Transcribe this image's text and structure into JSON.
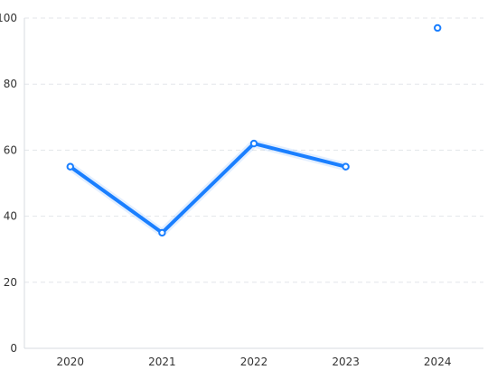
{
  "chart_data": {
    "type": "line",
    "categories": [
      "2020",
      "2021",
      "2022",
      "2023",
      "2024"
    ],
    "series": [
      {
        "values": [
          55,
          35,
          62,
          55,
          97
        ]
      }
    ],
    "segments_connected": [
      true,
      true,
      true,
      false
    ],
    "y_ticks": [
      0,
      20,
      40,
      60,
      80,
      100
    ],
    "ylim": [
      0,
      100
    ],
    "grid": "horizontal dashed",
    "legend": "none",
    "colors": {
      "series": "#1a7fff"
    }
  }
}
